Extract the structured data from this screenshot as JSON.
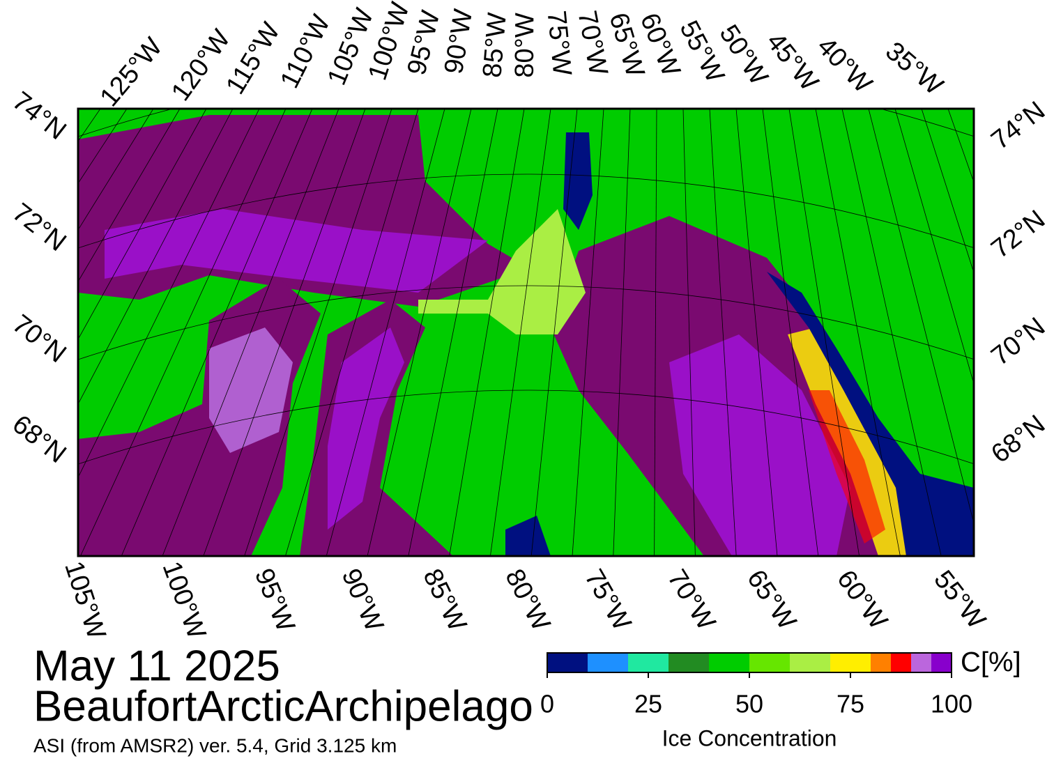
{
  "map": {
    "top_labels": [
      "125°W",
      "120°W",
      "115°W",
      "110°W",
      "105°W",
      "100°W",
      "95°W",
      "90°W",
      "85°W",
      "80°W",
      "75°W",
      "70°W",
      "65°W",
      "60°W",
      "55°W",
      "50°W",
      "45°W",
      "40°W",
      "35°W"
    ],
    "bottom_labels": [
      "105°W",
      "100°W",
      "95°W",
      "90°W",
      "85°W",
      "80°W",
      "75°W",
      "70°W",
      "65°W",
      "60°W",
      "55°W"
    ],
    "left_labels": [
      "74°N",
      "72°N",
      "70°N",
      "68°N"
    ],
    "right_labels": [
      "74°N",
      "72°N",
      "70°N",
      "68°N"
    ]
  },
  "date": "May 11 2025",
  "region": "BeaufortArcticArchipelago",
  "subtitle": "ASI (from AMSR2) ver. 5.4,  Grid 3.125 km",
  "colorbar": {
    "bounds": [
      0,
      10,
      20,
      30,
      40,
      50,
      60,
      70,
      80,
      85,
      90,
      95,
      100
    ],
    "colors": [
      "#001080",
      "#1e90ff",
      "#20e8a0",
      "#228b22",
      "#00cc00",
      "#66e600",
      "#aaee44",
      "#ffee00",
      "#ff8000",
      "#ff0000",
      "#bb66dd",
      "#8800cc"
    ],
    "lim": [
      0,
      100
    ],
    "ticks": [
      0,
      25,
      50,
      75,
      100
    ],
    "unit": "C[%]",
    "label": "Ice Concentration"
  }
}
